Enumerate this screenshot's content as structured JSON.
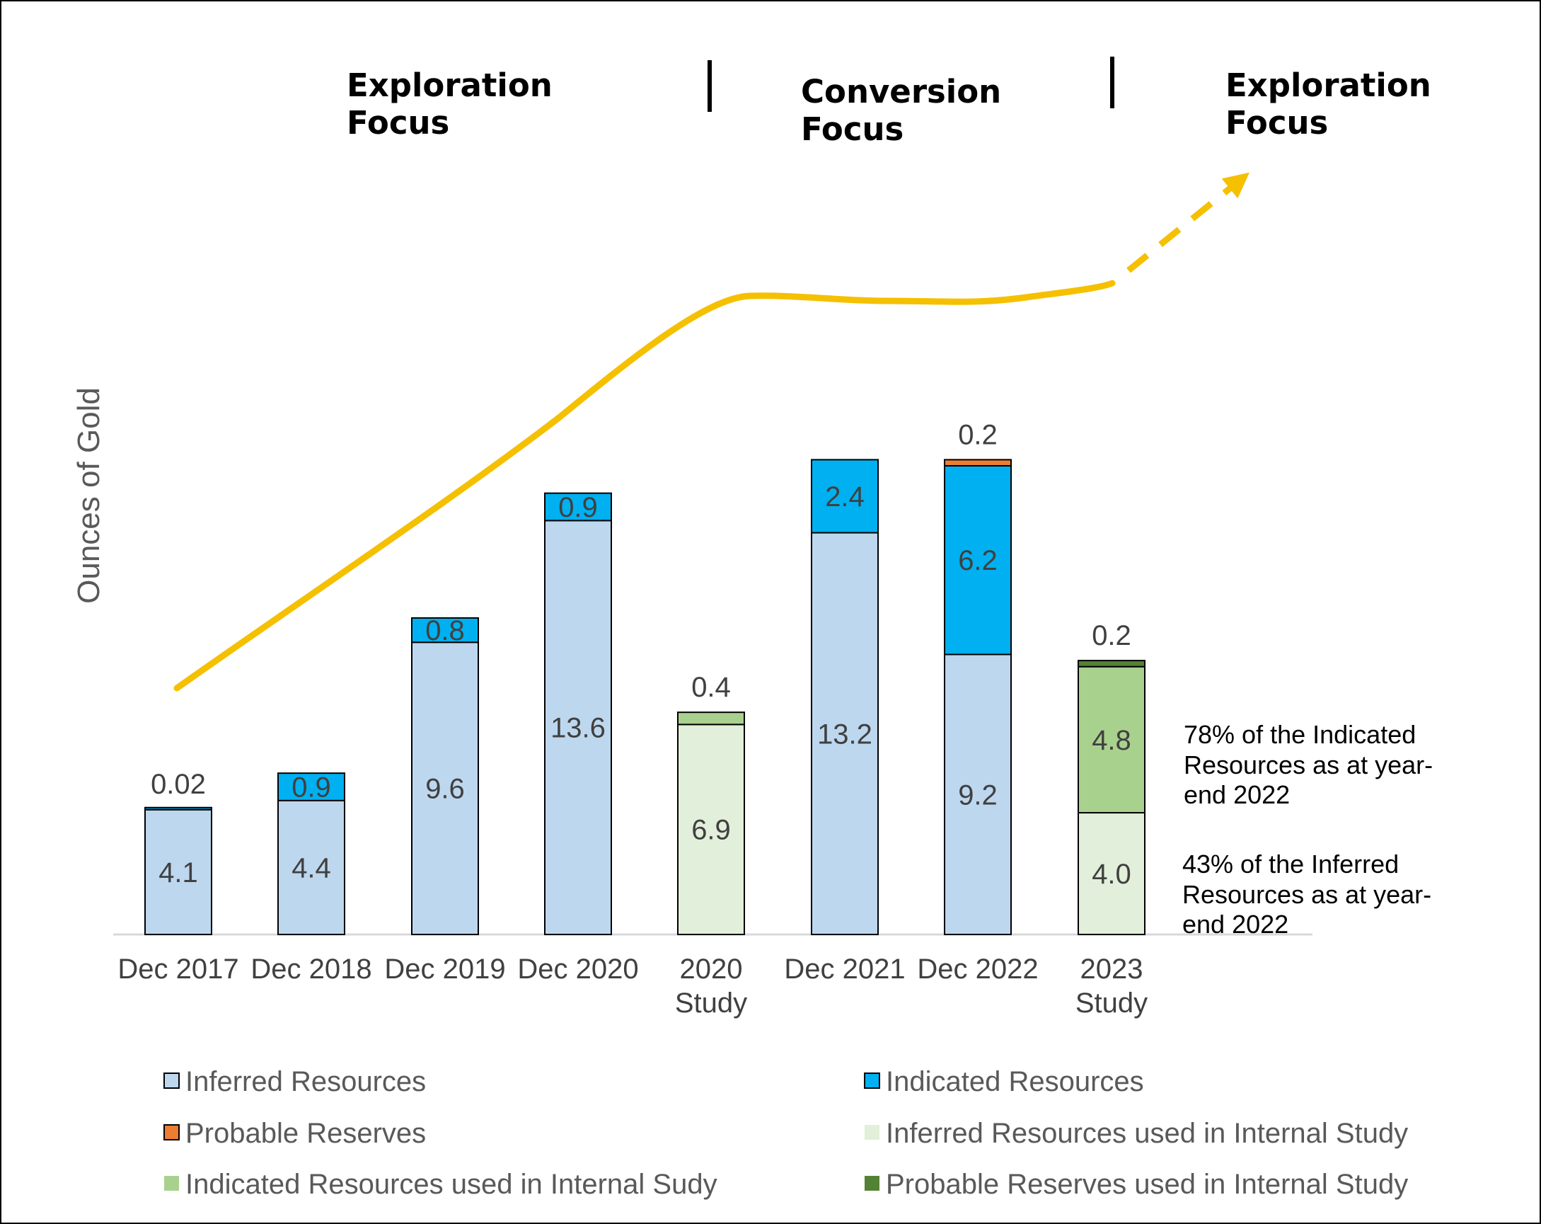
{
  "phases": [
    {
      "line1": "Exploration",
      "line2": "Focus"
    },
    {
      "line1": "Conversion",
      "line2": "Focus"
    },
    {
      "line1": "Exploration",
      "line2": "Focus"
    }
  ],
  "notes": [
    [
      "78% of the Indicated",
      "Resources as at year-",
      "end 2022"
    ],
    [
      "43% of the Inferred",
      "Resources as at year-",
      "end 2022"
    ]
  ],
  "colors": {
    "inferred": "#BDD7EE",
    "indicated": "#00B0F0",
    "probable": "#ED7D31",
    "inferred_study": "#E2EFDA",
    "indicated_study": "#A9D18E",
    "probable_study": "#548235",
    "trend": "#F5C000"
  },
  "chart_data": {
    "type": "bar",
    "stacked": true,
    "ylabel": "Ounces of Gold",
    "xlabel": "",
    "categories": [
      [
        "Dec 2017"
      ],
      [
        "Dec 2018"
      ],
      [
        "Dec 2019"
      ],
      [
        "Dec 2020"
      ],
      [
        "2020",
        "Study"
      ],
      [
        "Dec 2021"
      ],
      [
        "Dec 2022"
      ],
      [
        "2023",
        "Study"
      ]
    ],
    "ylim": [
      0,
      22
    ],
    "grid": false,
    "legend_position": "bottom",
    "series": [
      {
        "name": "Inferred Resources",
        "key": "inferred",
        "values": [
          4.1,
          4.4,
          9.6,
          13.6,
          0,
          13.2,
          9.2,
          0
        ]
      },
      {
        "name": "Indicated Resources",
        "key": "indicated",
        "values": [
          0.02,
          0.9,
          0.8,
          0.9,
          0,
          2.4,
          6.2,
          0
        ]
      },
      {
        "name": "Probable Reserves",
        "key": "probable",
        "values": [
          0,
          0,
          0,
          0,
          0,
          0,
          0.2,
          0
        ]
      },
      {
        "name": "Inferred Resources used in Internal Study",
        "key": "inferred_study",
        "values": [
          0,
          0,
          0,
          0,
          6.9,
          0,
          0,
          4.0
        ]
      },
      {
        "name": "Indicated Resources used in Internal Sudy",
        "key": "indicated_study",
        "values": [
          0,
          0,
          0,
          0,
          0.4,
          0,
          0,
          4.8
        ]
      },
      {
        "name": "Probable Reserves used in Internal Study",
        "key": "probable_study",
        "values": [
          0,
          0,
          0,
          0,
          0,
          0,
          0,
          0.2
        ]
      }
    ],
    "segment_labels": [
      {
        "cat": 0,
        "series": "inferred",
        "text": "4.1"
      },
      {
        "cat": 1,
        "series": "inferred",
        "text": "4.4"
      },
      {
        "cat": 1,
        "series": "indicated",
        "text": "0.9"
      },
      {
        "cat": 2,
        "series": "inferred",
        "text": "9.6"
      },
      {
        "cat": 2,
        "series": "indicated",
        "text": "0.8"
      },
      {
        "cat": 3,
        "series": "inferred",
        "text": "13.6"
      },
      {
        "cat": 3,
        "series": "indicated",
        "text": "0.9"
      },
      {
        "cat": 4,
        "series": "inferred_study",
        "text": "6.9"
      },
      {
        "cat": 5,
        "series": "inferred",
        "text": "13.2"
      },
      {
        "cat": 5,
        "series": "indicated",
        "text": "2.4"
      },
      {
        "cat": 6,
        "series": "inferred",
        "text": "9.2"
      },
      {
        "cat": 6,
        "series": "indicated",
        "text": "6.2"
      },
      {
        "cat": 7,
        "series": "inferred_study",
        "text": "4.0"
      },
      {
        "cat": 7,
        "series": "indicated_study",
        "text": "4.8"
      }
    ],
    "top_labels": [
      {
        "cat": 0,
        "text": "0.02"
      },
      {
        "cat": 4,
        "text": "0.4"
      },
      {
        "cat": 6,
        "text": "0.2"
      },
      {
        "cat": 7,
        "text": "0.2"
      }
    ]
  }
}
